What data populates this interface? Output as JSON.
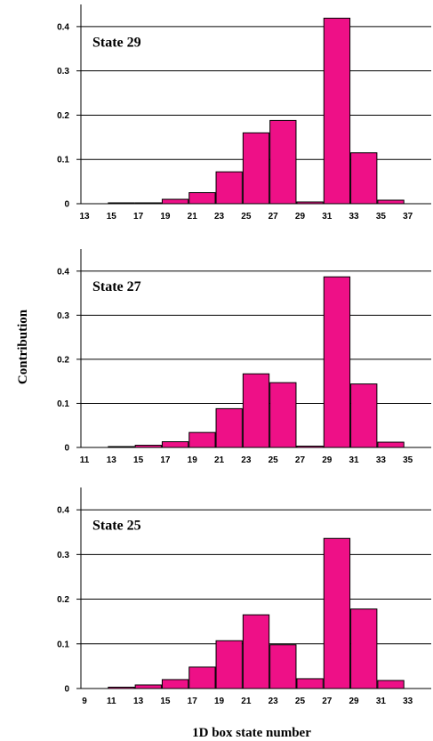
{
  "figure": {
    "ylabel": "Contribution",
    "xlabel": "1D box state number",
    "bar_color": "#ee1087",
    "grid_color": "#000000"
  },
  "chart_data": [
    {
      "type": "bar",
      "title": "State 29",
      "x_ticks": [
        "13",
        "15",
        "17",
        "19",
        "21",
        "23",
        "25",
        "27",
        "29",
        "31",
        "33",
        "35",
        "37"
      ],
      "categories": [
        "15",
        "17",
        "19",
        "21",
        "23",
        "25",
        "27",
        "29",
        "31",
        "33",
        "35"
      ],
      "values": [
        0.002,
        0.002,
        0.01,
        0.025,
        0.072,
        0.16,
        0.188,
        0.004,
        0.419,
        0.115,
        0.008
      ],
      "y_ticks": [
        "0",
        "0.1",
        "0.2",
        "0.3",
        "0.4"
      ],
      "ylim": [
        0,
        0.45
      ],
      "grid": true
    },
    {
      "type": "bar",
      "title": "State 27",
      "x_ticks": [
        "11",
        "13",
        "15",
        "17",
        "19",
        "21",
        "23",
        "25",
        "27",
        "29",
        "31",
        "33",
        "35"
      ],
      "categories": [
        "13",
        "15",
        "17",
        "19",
        "21",
        "23",
        "25",
        "27",
        "29",
        "31",
        "33"
      ],
      "values": [
        0.002,
        0.005,
        0.013,
        0.034,
        0.088,
        0.167,
        0.147,
        0.003,
        0.387,
        0.144,
        0.012
      ],
      "y_ticks": [
        "0",
        "0.1",
        "0.2",
        "0.3",
        "0.4"
      ],
      "ylim": [
        0,
        0.45
      ],
      "grid": true
    },
    {
      "type": "bar",
      "title": "State 25",
      "x_ticks": [
        "9",
        "11",
        "13",
        "15",
        "17",
        "19",
        "21",
        "23",
        "25",
        "27",
        "29",
        "31",
        "33"
      ],
      "categories": [
        "11",
        "13",
        "15",
        "17",
        "19",
        "21",
        "23",
        "25",
        "27",
        "29",
        "31"
      ],
      "values": [
        0.003,
        0.008,
        0.02,
        0.048,
        0.107,
        0.165,
        0.098,
        0.022,
        0.336,
        0.178,
        0.018
      ],
      "y_ticks": [
        "0",
        "0.1",
        "0.2",
        "0.3",
        "0.4"
      ],
      "ylim": [
        0,
        0.45
      ],
      "grid": true
    }
  ]
}
